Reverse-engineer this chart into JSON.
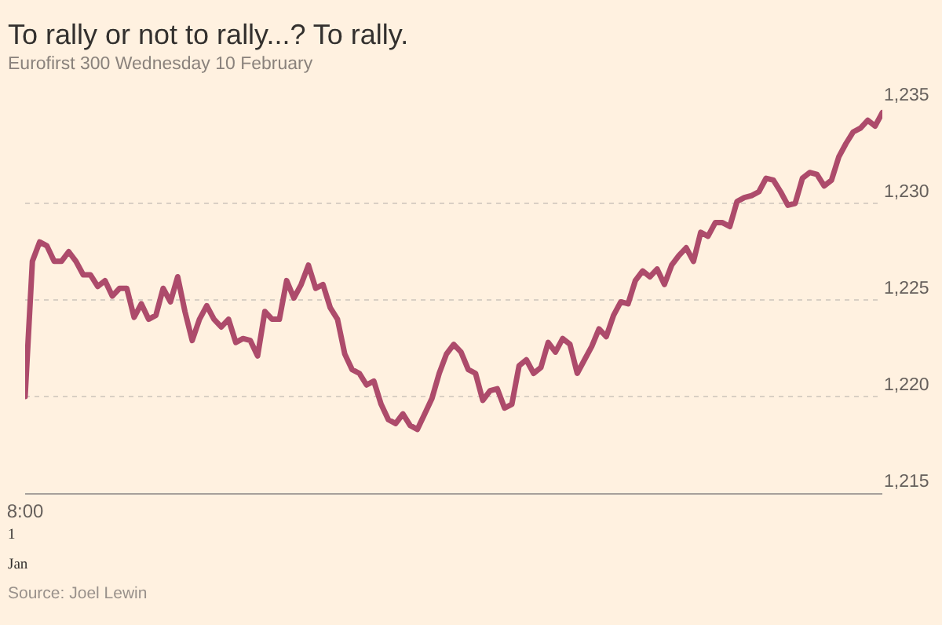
{
  "chart_data": {
    "type": "line",
    "title": "To rally or not to rally...? To rally.",
    "subtitle": "Eurofirst 300 Wednesday 10 February",
    "annotations": [
      "1",
      "Jan",
      "Source: Joel Lewin"
    ],
    "categories": [
      "8:00",
      null,
      null,
      null,
      null,
      null,
      null,
      null,
      null,
      null,
      null,
      null,
      null,
      null,
      null,
      null,
      null,
      null,
      null,
      null,
      null,
      null,
      null,
      null,
      null,
      null,
      null,
      null,
      null,
      null,
      null,
      null,
      null,
      null,
      null,
      null,
      null,
      null,
      null,
      null,
      null,
      null,
      null,
      null,
      null,
      null,
      null,
      null,
      null,
      null,
      null,
      null,
      null,
      null,
      null,
      null,
      null,
      null,
      null,
      null,
      null,
      null,
      null,
      null,
      null,
      null,
      null,
      null,
      null,
      null,
      null,
      null,
      null,
      null,
      null,
      null,
      null,
      null,
      null,
      null,
      null,
      null,
      null,
      null,
      null,
      null,
      null,
      null,
      null,
      null,
      null,
      null,
      null,
      null,
      null,
      null,
      null,
      null,
      null,
      null,
      null,
      null,
      null,
      null,
      null,
      null,
      null,
      null,
      null,
      null,
      null,
      null,
      null,
      null,
      null,
      null,
      null,
      null,
      null
    ],
    "series": [
      {
        "color": "#ad4b6b",
        "values": [
          1220.0,
          1227.0,
          1228.0,
          1227.8,
          1227.0,
          1227.0,
          1227.5,
          1227.0,
          1226.3,
          1226.3,
          1225.7,
          1226.0,
          1225.2,
          1225.6,
          1225.6,
          1224.1,
          1224.8,
          1224.0,
          1224.2,
          1225.6,
          1224.9,
          1226.2,
          1224.4,
          1222.9,
          1224.0,
          1224.7,
          1224.0,
          1223.6,
          1224.0,
          1222.8,
          1223.0,
          1222.9,
          1222.1,
          1224.4,
          1224.0,
          1224.0,
          1226.0,
          1225.1,
          1225.8,
          1226.8,
          1225.6,
          1225.8,
          1224.6,
          1224.0,
          1222.2,
          1221.4,
          1221.2,
          1220.6,
          1220.8,
          1219.6,
          1218.8,
          1218.6,
          1219.1,
          1218.5,
          1218.3,
          1219.1,
          1219.9,
          1221.2,
          1222.2,
          1222.7,
          1222.3,
          1221.4,
          1221.2,
          1219.8,
          1220.3,
          1220.4,
          1219.4,
          1219.6,
          1221.6,
          1221.9,
          1221.2,
          1221.5,
          1222.8,
          1222.3,
          1223.0,
          1222.7,
          1221.2,
          1221.9,
          1222.6,
          1223.5,
          1223.1,
          1224.2,
          1224.9,
          1224.8,
          1226.0,
          1226.5,
          1226.2,
          1226.6,
          1225.8,
          1226.8,
          1227.3,
          1227.7,
          1227.0,
          1228.5,
          1228.3,
          1229.0,
          1229.0,
          1228.8,
          1230.1,
          1230.3,
          1230.4,
          1230.6,
          1231.3,
          1231.2,
          1230.6,
          1229.9,
          1230.0,
          1231.3,
          1231.6,
          1231.5,
          1230.9,
          1231.2,
          1232.4,
          1233.1,
          1233.7,
          1233.9,
          1234.3,
          1234.0,
          1234.7
        ]
      }
    ],
    "ylim": [
      1215,
      1235
    ],
    "yticks": [
      {
        "value": 1215,
        "label": "1,215"
      },
      {
        "value": 1220,
        "label": "1,220"
      },
      {
        "value": 1225,
        "label": "1,225"
      },
      {
        "value": 1230,
        "label": "1,230"
      },
      {
        "value": 1235,
        "label": "1,235"
      }
    ],
    "grid": "y",
    "marker": "none",
    "line_style": "solid"
  }
}
